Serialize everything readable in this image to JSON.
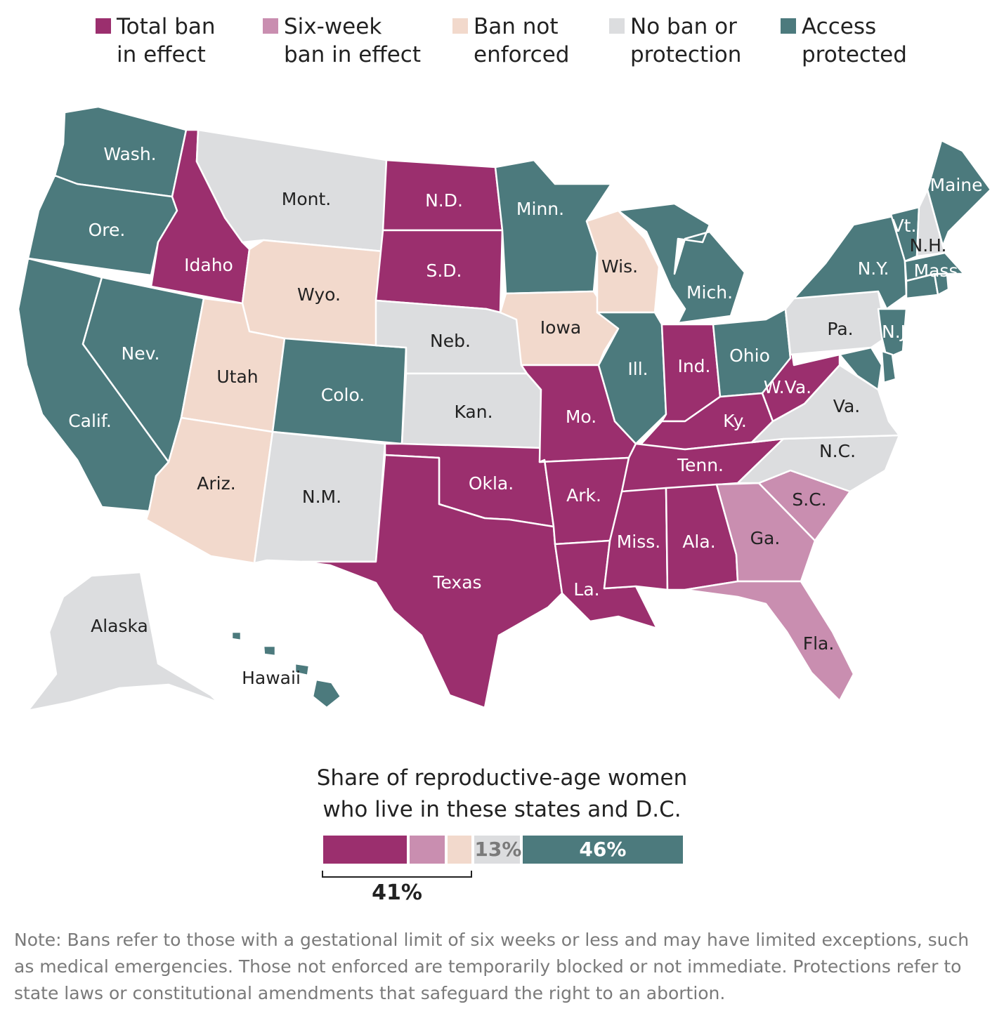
{
  "colors": {
    "total_ban": "#9b2f6e",
    "six_week": "#c98eb0",
    "not_enforced": "#f2d9cc",
    "no_ban": "#dcdddf",
    "protected": "#4c7a7d"
  },
  "legend": [
    {
      "key": "total_ban",
      "line1": "Total ban",
      "line2": "in effect"
    },
    {
      "key": "six_week",
      "line1": "Six-week",
      "line2": "ban in effect"
    },
    {
      "key": "not_enforced",
      "line1": "Ban not",
      "line2": "enforced"
    },
    {
      "key": "no_ban",
      "line1": "No ban or",
      "line2": "protection"
    },
    {
      "key": "protected",
      "line1": "Access",
      "line2": "protected"
    }
  ],
  "states": [
    {
      "id": "wa",
      "label": "Wash.",
      "status": "protected"
    },
    {
      "id": "or",
      "label": "Ore.",
      "status": "protected"
    },
    {
      "id": "ca",
      "label": "Calif.",
      "status": "protected"
    },
    {
      "id": "nv",
      "label": "Nev.",
      "status": "protected"
    },
    {
      "id": "id",
      "label": "Idaho",
      "status": "total_ban"
    },
    {
      "id": "mt",
      "label": "Mont.",
      "status": "no_ban"
    },
    {
      "id": "wy",
      "label": "Wyo.",
      "status": "not_enforced"
    },
    {
      "id": "ut",
      "label": "Utah",
      "status": "not_enforced"
    },
    {
      "id": "az",
      "label": "Ariz.",
      "status": "not_enforced"
    },
    {
      "id": "co",
      "label": "Colo.",
      "status": "protected"
    },
    {
      "id": "nm",
      "label": "N.M.",
      "status": "no_ban"
    },
    {
      "id": "nd",
      "label": "N.D.",
      "status": "total_ban"
    },
    {
      "id": "sd",
      "label": "S.D.",
      "status": "total_ban"
    },
    {
      "id": "ne",
      "label": "Neb.",
      "status": "no_ban"
    },
    {
      "id": "ks",
      "label": "Kan.",
      "status": "no_ban"
    },
    {
      "id": "ok",
      "label": "Okla.",
      "status": "total_ban"
    },
    {
      "id": "tx",
      "label": "Texas",
      "status": "total_ban"
    },
    {
      "id": "mn",
      "label": "Minn.",
      "status": "protected"
    },
    {
      "id": "ia",
      "label": "Iowa",
      "status": "not_enforced"
    },
    {
      "id": "mo",
      "label": "Mo.",
      "status": "total_ban"
    },
    {
      "id": "ar",
      "label": "Ark.",
      "status": "total_ban"
    },
    {
      "id": "la",
      "label": "La.",
      "status": "total_ban"
    },
    {
      "id": "wi",
      "label": "Wis.",
      "status": "not_enforced"
    },
    {
      "id": "il",
      "label": "Ill.",
      "status": "protected"
    },
    {
      "id": "mi",
      "label": "Mich.",
      "status": "protected"
    },
    {
      "id": "in",
      "label": "Ind.",
      "status": "total_ban"
    },
    {
      "id": "oh",
      "label": "Ohio",
      "status": "protected"
    },
    {
      "id": "ky",
      "label": "Ky.",
      "status": "total_ban"
    },
    {
      "id": "tn",
      "label": "Tenn.",
      "status": "total_ban"
    },
    {
      "id": "ms",
      "label": "Miss.",
      "status": "total_ban"
    },
    {
      "id": "al",
      "label": "Ala.",
      "status": "total_ban"
    },
    {
      "id": "ga",
      "label": "Ga.",
      "status": "six_week"
    },
    {
      "id": "fl",
      "label": "Fla.",
      "status": "six_week"
    },
    {
      "id": "sc",
      "label": "S.C.",
      "status": "six_week"
    },
    {
      "id": "nc",
      "label": "N.C.",
      "status": "no_ban"
    },
    {
      "id": "va",
      "label": "Va.",
      "status": "no_ban"
    },
    {
      "id": "wv",
      "label": "W.Va.",
      "status": "total_ban"
    },
    {
      "id": "pa",
      "label": "Pa.",
      "status": "no_ban"
    },
    {
      "id": "ny",
      "label": "N.Y.",
      "status": "protected"
    },
    {
      "id": "nj",
      "label": "N.J.",
      "status": "protected"
    },
    {
      "id": "md",
      "label": "",
      "status": "protected"
    },
    {
      "id": "de",
      "label": "",
      "status": "protected"
    },
    {
      "id": "ct",
      "label": "",
      "status": "protected"
    },
    {
      "id": "ri",
      "label": "",
      "status": "protected"
    },
    {
      "id": "ma",
      "label": "Mass.",
      "status": "protected"
    },
    {
      "id": "vt",
      "label": "Vt.",
      "status": "protected"
    },
    {
      "id": "nh",
      "label": "N.H.",
      "status": "no_ban"
    },
    {
      "id": "me",
      "label": "Maine",
      "status": "protected"
    },
    {
      "id": "ak",
      "label": "Alaska",
      "status": "no_ban"
    },
    {
      "id": "hi",
      "label": "Hawaii",
      "status": "protected"
    }
  ],
  "share": {
    "title_line1": "Share of reproductive-age women",
    "title_line2": "who live in these states and D.C.",
    "segments": [
      {
        "key": "total_ban",
        "value": 24,
        "label": ""
      },
      {
        "key": "six_week",
        "value": 10,
        "label": ""
      },
      {
        "key": "not_enforced",
        "value": 7,
        "label": ""
      },
      {
        "key": "no_ban",
        "value": 13,
        "label": "13%"
      },
      {
        "key": "protected",
        "value": 46,
        "label": "46%"
      }
    ],
    "bracket_label": "41%"
  },
  "note": "Note: Bans refer to those with a gestational limit of six weeks or less and may have limited exceptions, such as medical emergencies. Those not enforced are temporarily blocked or not immediate. Protections refer to state laws or constitutional amendments that safeguard the right to an abortion."
}
